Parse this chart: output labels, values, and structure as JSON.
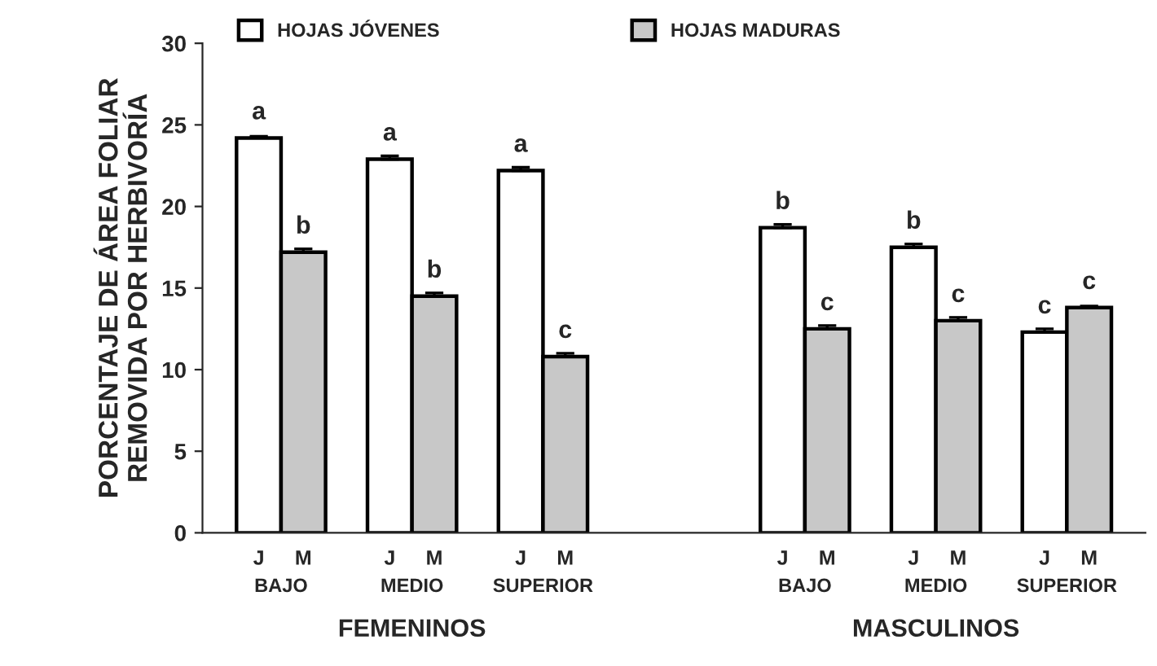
{
  "chart_data": {
    "type": "bar",
    "ylabel": "PORCENTAJE DE ÁREA FOLIAR\nREMOVIDA POR HERBIVORÍA",
    "categories": [
      "BAJO",
      "MEDIO",
      "SUPERIOR",
      null,
      "BAJO",
      "MEDIO",
      "SUPERIOR"
    ],
    "series": [
      {
        "name": "HOJAS JÓVENES",
        "color": "#ffffff",
        "values": [
          24.2,
          22.9,
          22.2,
          null,
          18.7,
          17.5,
          12.3
        ],
        "errors": [
          0.1,
          0.2,
          0.2,
          null,
          0.2,
          0.2,
          0.2
        ],
        "value_labels": [
          "a",
          "a",
          "a",
          null,
          "b",
          "b",
          "c"
        ]
      },
      {
        "name": "HOJAS MADURAS",
        "color": "#c8c8c8",
        "values": [
          17.2,
          14.5,
          10.8,
          null,
          12.5,
          13.0,
          13.8
        ],
        "errors": [
          0.2,
          0.2,
          0.2,
          null,
          0.2,
          0.2,
          0.1
        ],
        "value_labels": [
          "b",
          "b",
          "c",
          null,
          "c",
          "c",
          "c"
        ]
      }
    ],
    "annotations": [
      "J",
      "M",
      "FEMENINOS",
      "MASCULINOS"
    ],
    "ylim": [
      0,
      30
    ],
    "yticks": [
      0,
      5,
      10,
      15,
      20,
      25,
      30
    ],
    "legend": "top",
    "grid": false
  }
}
